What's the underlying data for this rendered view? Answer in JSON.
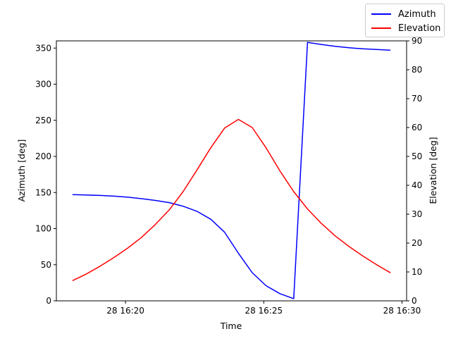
{
  "chart_data": {
    "type": "line",
    "xlabel": "Time",
    "ylabel_left": "Azimuth [deg]",
    "ylabel_right": "Elevation [deg]",
    "x_range": [
      "28 16:17:30",
      "28 16:30:10"
    ],
    "x_ticks": [
      {
        "time": "28 16:20",
        "label": "28 16:20"
      },
      {
        "time": "28 16:25",
        "label": "28 16:25"
      },
      {
        "time": "28 16:30",
        "label": "28 16:30"
      }
    ],
    "ylim_left": [
      0,
      360
    ],
    "yticks_left": [
      0,
      50,
      100,
      150,
      200,
      250,
      300,
      350
    ],
    "ylim_right": [
      0,
      90
    ],
    "yticks_right": [
      0,
      10,
      20,
      30,
      40,
      50,
      60,
      70,
      80,
      90
    ],
    "legend_position": "top-right",
    "grid": false,
    "series": [
      {
        "name": "Azimuth",
        "axis": "left",
        "color": "#0000ff",
        "points": [
          [
            "28 16:18:05",
            147
          ],
          [
            "28 16:18:35",
            146.5
          ],
          [
            "28 16:19:05",
            146
          ],
          [
            "28 16:19:35",
            145
          ],
          [
            "28 16:20:05",
            143.5
          ],
          [
            "28 16:20:35",
            141.5
          ],
          [
            "28 16:21:05",
            139
          ],
          [
            "28 16:21:35",
            136
          ],
          [
            "28 16:22:05",
            131
          ],
          [
            "28 16:22:35",
            124
          ],
          [
            "28 16:23:05",
            113
          ],
          [
            "28 16:23:35",
            95
          ],
          [
            "28 16:24:05",
            66
          ],
          [
            "28 16:24:35",
            39
          ],
          [
            "28 16:25:05",
            21
          ],
          [
            "28 16:25:35",
            10
          ],
          [
            "28 16:26:05",
            3
          ],
          [
            "28 16:26:35",
            358
          ],
          [
            "28 16:27:05",
            355
          ],
          [
            "28 16:27:35",
            352.5
          ],
          [
            "28 16:28:05",
            350.5
          ],
          [
            "28 16:28:35",
            349
          ],
          [
            "28 16:29:05",
            348
          ],
          [
            "28 16:29:35",
            347
          ]
        ]
      },
      {
        "name": "Elevation",
        "axis": "right",
        "color": "#ff0000",
        "points": [
          [
            "28 16:18:05",
            7
          ],
          [
            "28 16:18:35",
            9.3
          ],
          [
            "28 16:19:05",
            12
          ],
          [
            "28 16:19:35",
            15
          ],
          [
            "28 16:20:05",
            18.3
          ],
          [
            "28 16:20:35",
            22
          ],
          [
            "28 16:21:05",
            26.5
          ],
          [
            "28 16:21:35",
            31.5
          ],
          [
            "28 16:22:05",
            37.8
          ],
          [
            "28 16:22:35",
            45.3
          ],
          [
            "28 16:23:05",
            53
          ],
          [
            "28 16:23:35",
            59.8
          ],
          [
            "28 16:24:05",
            62.8
          ],
          [
            "28 16:24:35",
            60
          ],
          [
            "28 16:25:05",
            53
          ],
          [
            "28 16:25:35",
            45
          ],
          [
            "28 16:26:05",
            37.8
          ],
          [
            "28 16:26:35",
            31.8
          ],
          [
            "28 16:27:05",
            26.8
          ],
          [
            "28 16:27:35",
            22.5
          ],
          [
            "28 16:28:05",
            18.8
          ],
          [
            "28 16:28:35",
            15.5
          ],
          [
            "28 16:29:05",
            12.5
          ],
          [
            "28 16:29:35",
            9.7
          ]
        ]
      }
    ]
  }
}
